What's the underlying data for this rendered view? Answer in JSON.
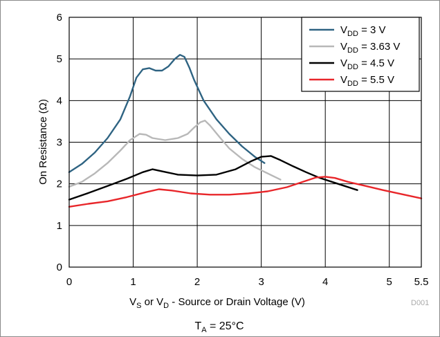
{
  "chart_data": {
    "type": "line",
    "xlabel": {
      "main": "V",
      "sub1": "S",
      "mid": " or V",
      "sub2": "D",
      "rest": " - Source or Drain Voltage (V)"
    },
    "ylabel": "On Resistance (Ω)",
    "xlim": [
      0,
      5.5
    ],
    "ylim": [
      0,
      6
    ],
    "x_ticks": [
      "0",
      "1",
      "2",
      "3",
      "4",
      "5",
      "5.5"
    ],
    "y_ticks": [
      "0",
      "1",
      "2",
      "3",
      "4",
      "5",
      "6"
    ],
    "grid": true,
    "legend_position": "top-right",
    "watermark": "D001",
    "condition": {
      "main": "T",
      "sub": "A",
      "rest": " = 25°C"
    },
    "series": [
      {
        "name": {
          "main": "V",
          "sub": "DD",
          "rest": " = 3 V"
        },
        "color": "#2e6382",
        "points": [
          [
            0,
            2.28
          ],
          [
            0.2,
            2.48
          ],
          [
            0.4,
            2.75
          ],
          [
            0.6,
            3.1
          ],
          [
            0.8,
            3.55
          ],
          [
            0.95,
            4.1
          ],
          [
            1.05,
            4.55
          ],
          [
            1.15,
            4.75
          ],
          [
            1.25,
            4.78
          ],
          [
            1.35,
            4.72
          ],
          [
            1.45,
            4.72
          ],
          [
            1.55,
            4.82
          ],
          [
            1.65,
            5.0
          ],
          [
            1.73,
            5.1
          ],
          [
            1.8,
            5.05
          ],
          [
            1.88,
            4.78
          ],
          [
            1.95,
            4.5
          ],
          [
            2.1,
            4.0
          ],
          [
            2.3,
            3.55
          ],
          [
            2.5,
            3.2
          ],
          [
            2.7,
            2.9
          ],
          [
            2.9,
            2.65
          ],
          [
            3.05,
            2.5
          ]
        ]
      },
      {
        "name": {
          "main": "V",
          "sub": "DD",
          "rest": " = 3.63 V"
        },
        "color": "#b8b8b8",
        "points": [
          [
            0,
            1.93
          ],
          [
            0.2,
            2.05
          ],
          [
            0.4,
            2.25
          ],
          [
            0.6,
            2.5
          ],
          [
            0.8,
            2.8
          ],
          [
            0.95,
            3.05
          ],
          [
            1.1,
            3.2
          ],
          [
            1.2,
            3.18
          ],
          [
            1.3,
            3.1
          ],
          [
            1.5,
            3.05
          ],
          [
            1.7,
            3.1
          ],
          [
            1.85,
            3.2
          ],
          [
            1.95,
            3.35
          ],
          [
            2.05,
            3.48
          ],
          [
            2.12,
            3.52
          ],
          [
            2.2,
            3.4
          ],
          [
            2.35,
            3.12
          ],
          [
            2.5,
            2.85
          ],
          [
            2.7,
            2.6
          ],
          [
            2.9,
            2.4
          ],
          [
            3.1,
            2.25
          ],
          [
            3.3,
            2.1
          ]
        ]
      },
      {
        "name": {
          "main": "V",
          "sub": "DD",
          "rest": " = 4.5 V"
        },
        "color": "#000000",
        "points": [
          [
            0,
            1.62
          ],
          [
            0.3,
            1.78
          ],
          [
            0.6,
            1.95
          ],
          [
            0.9,
            2.12
          ],
          [
            1.15,
            2.28
          ],
          [
            1.3,
            2.35
          ],
          [
            1.45,
            2.3
          ],
          [
            1.7,
            2.22
          ],
          [
            2.0,
            2.2
          ],
          [
            2.3,
            2.22
          ],
          [
            2.6,
            2.35
          ],
          [
            2.85,
            2.55
          ],
          [
            3.0,
            2.65
          ],
          [
            3.15,
            2.67
          ],
          [
            3.3,
            2.57
          ],
          [
            3.5,
            2.42
          ],
          [
            3.7,
            2.28
          ],
          [
            3.9,
            2.15
          ],
          [
            4.1,
            2.05
          ],
          [
            4.3,
            1.95
          ],
          [
            4.5,
            1.85
          ]
        ]
      },
      {
        "name": {
          "main": "V",
          "sub": "DD",
          "rest": " = 5.5 V"
        },
        "color": "#e8262a",
        "points": [
          [
            0,
            1.45
          ],
          [
            0.3,
            1.52
          ],
          [
            0.6,
            1.58
          ],
          [
            0.9,
            1.68
          ],
          [
            1.2,
            1.8
          ],
          [
            1.4,
            1.87
          ],
          [
            1.6,
            1.84
          ],
          [
            1.9,
            1.77
          ],
          [
            2.2,
            1.74
          ],
          [
            2.5,
            1.74
          ],
          [
            2.8,
            1.77
          ],
          [
            3.1,
            1.82
          ],
          [
            3.4,
            1.92
          ],
          [
            3.65,
            2.05
          ],
          [
            3.85,
            2.15
          ],
          [
            4.0,
            2.17
          ],
          [
            4.15,
            2.14
          ],
          [
            4.35,
            2.05
          ],
          [
            4.6,
            1.96
          ],
          [
            4.9,
            1.85
          ],
          [
            5.2,
            1.75
          ],
          [
            5.5,
            1.65
          ]
        ]
      }
    ]
  }
}
